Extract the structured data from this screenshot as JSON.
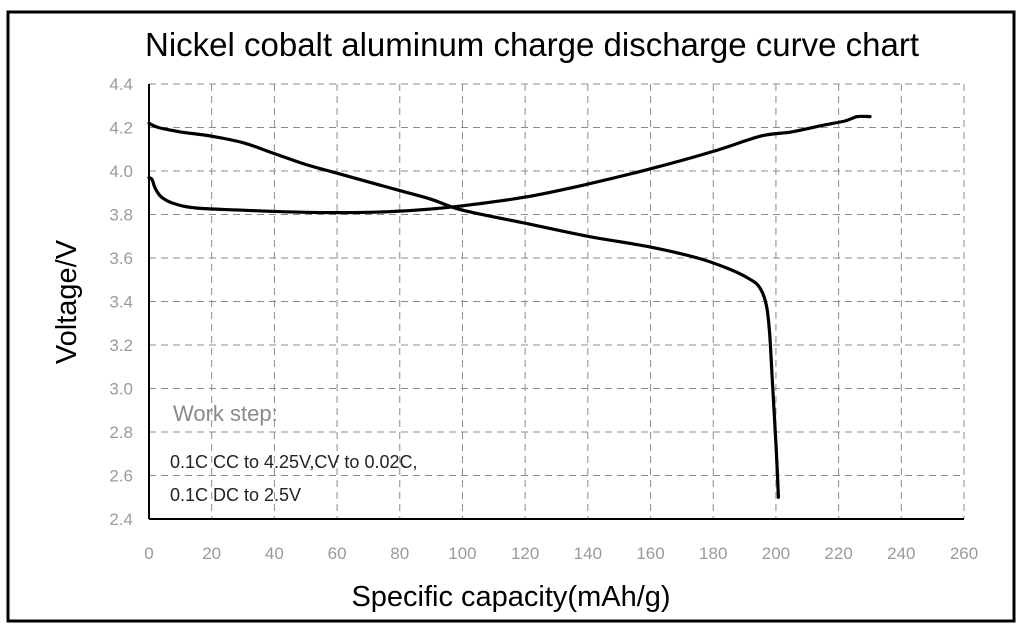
{
  "chart_data": {
    "type": "line",
    "title": "Nickel cobalt aluminum charge discharge curve chart",
    "xlabel": "Specific capacity(mAh/g)",
    "ylabel": "Voltage/V",
    "xlim": [
      0,
      260
    ],
    "ylim": [
      2.4,
      4.4
    ],
    "xticks": [
      "0",
      "20",
      "40",
      "60",
      "80",
      "100",
      "120",
      "140",
      "160",
      "180",
      "200",
      "220",
      "240",
      "260"
    ],
    "yticks": [
      "2.4",
      "2.6",
      "2.8",
      "3.0",
      "3.2",
      "3.4",
      "3.6",
      "3.8",
      "4.0",
      "4.2",
      "4.4"
    ],
    "grid": true,
    "series": [
      {
        "color": "#000000",
        "points": [
          [
            0,
            3.97
          ],
          [
            1,
            3.96
          ],
          [
            2,
            3.92
          ],
          [
            4,
            3.88
          ],
          [
            8,
            3.85
          ],
          [
            15,
            3.83
          ],
          [
            30,
            3.82
          ],
          [
            50,
            3.81
          ],
          [
            70,
            3.81
          ],
          [
            85,
            3.82
          ],
          [
            100,
            3.84
          ],
          [
            120,
            3.88
          ],
          [
            140,
            3.94
          ],
          [
            160,
            4.01
          ],
          [
            180,
            4.09
          ],
          [
            195,
            4.16
          ],
          [
            205,
            4.18
          ],
          [
            215,
            4.21
          ],
          [
            222,
            4.23
          ],
          [
            226,
            4.25
          ],
          [
            230,
            4.25
          ]
        ]
      },
      {
        "color": "#000000",
        "points": [
          [
            0,
            4.22
          ],
          [
            3,
            4.2
          ],
          [
            10,
            4.18
          ],
          [
            20,
            4.16
          ],
          [
            30,
            4.13
          ],
          [
            40,
            4.08
          ],
          [
            50,
            4.03
          ],
          [
            60,
            3.99
          ],
          [
            70,
            3.95
          ],
          [
            80,
            3.91
          ],
          [
            90,
            3.87
          ],
          [
            100,
            3.82
          ],
          [
            120,
            3.76
          ],
          [
            140,
            3.7
          ],
          [
            160,
            3.65
          ],
          [
            175,
            3.6
          ],
          [
            185,
            3.55
          ],
          [
            192,
            3.5
          ],
          [
            195,
            3.46
          ],
          [
            197,
            3.38
          ],
          [
            198,
            3.25
          ],
          [
            199,
            3.0
          ],
          [
            200,
            2.75
          ],
          [
            200.5,
            2.6
          ],
          [
            200.8,
            2.5
          ]
        ]
      }
    ],
    "annotations": [
      "Work step:",
      "0.1C CC to 4.25V,CV to 0.02C,",
      "0.1C DC to 2.5V"
    ]
  }
}
